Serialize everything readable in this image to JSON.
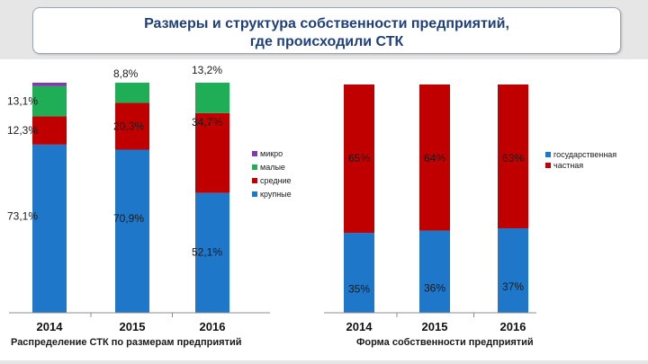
{
  "title": {
    "line1": "Размеры и структура собственности предприятий,",
    "line2": "где происходили СТК"
  },
  "colors": {
    "blue": "#1f77c9",
    "red": "#c00000",
    "green": "#1fae55",
    "purple": "#7c3ea8",
    "axis": "#8c8c8c"
  },
  "chart_data": [
    {
      "type": "bar",
      "stacked": true,
      "title": "Распределение СТК по размерам предприятий",
      "categories": [
        "2014",
        "2015",
        "2016"
      ],
      "series": [
        {
          "name": "крупные",
          "values": [
            73.1,
            70.9,
            52.1
          ],
          "labels": [
            "73,1%",
            "70,9%",
            "52,1%"
          ],
          "color": "#1f77c9"
        },
        {
          "name": "средние",
          "values": [
            12.3,
            20.3,
            34.7
          ],
          "labels": [
            "12,3%",
            "20,3%",
            "34,7%"
          ],
          "color": "#c00000"
        },
        {
          "name": "малые",
          "values": [
            13.1,
            8.8,
            13.2
          ],
          "labels": [
            "13,1%",
            "8,8%",
            "13,2%"
          ],
          "color": "#1fae55"
        },
        {
          "name": "микро",
          "values": [
            1.5,
            0,
            0
          ],
          "labels": [
            "",
            "",
            ""
          ],
          "color": "#7c3ea8"
        }
      ],
      "legend_order": [
        "микро",
        "малые",
        "средние",
        "крупные"
      ],
      "legend_position": "right",
      "ylim": [
        0,
        100
      ]
    },
    {
      "type": "bar",
      "stacked": true,
      "title": "Форма собственности предприятий",
      "categories": [
        "2014",
        "2015",
        "2016"
      ],
      "series": [
        {
          "name": "государственная",
          "values": [
            35,
            36,
            37
          ],
          "labels": [
            "35%",
            "36%",
            "37%"
          ],
          "color": "#1f77c9"
        },
        {
          "name": "частная",
          "values": [
            65,
            64,
            63
          ],
          "labels": [
            "65%",
            "64%",
            "63%"
          ],
          "color": "#c00000"
        }
      ],
      "legend_order": [
        "государственная",
        "частная"
      ],
      "legend_position": "right",
      "ylim": [
        0,
        100
      ]
    }
  ]
}
